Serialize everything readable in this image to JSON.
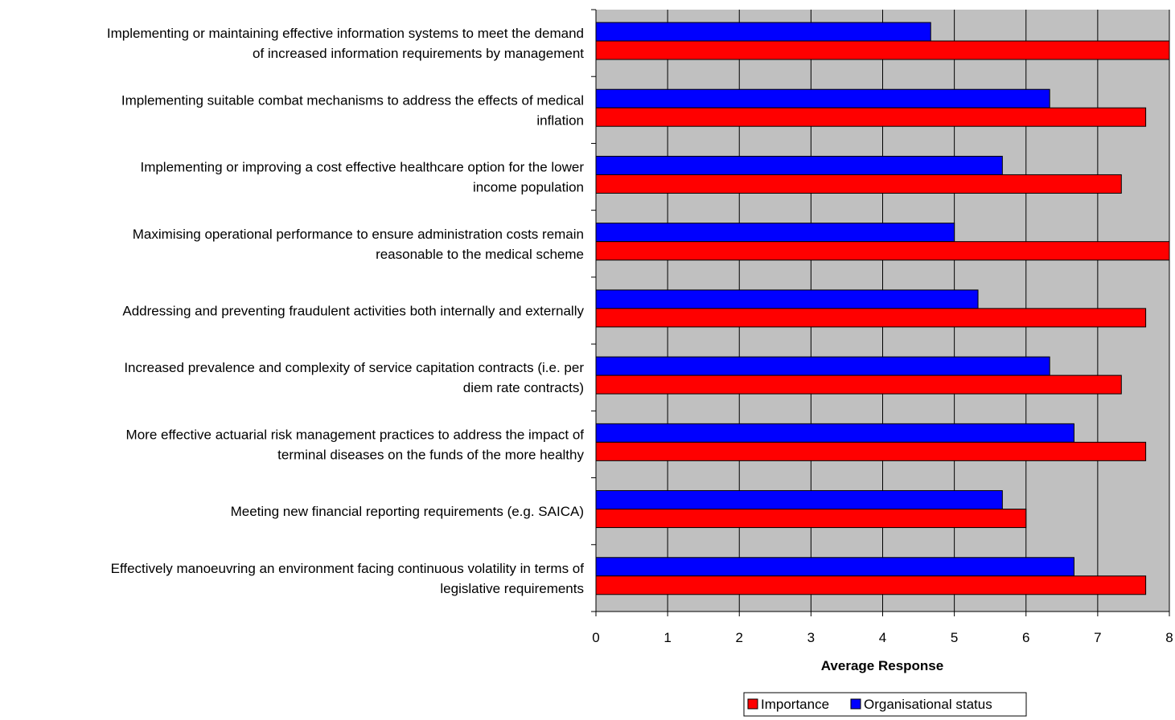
{
  "chart_data": {
    "type": "bar",
    "orientation": "horizontal",
    "categories": [
      [
        "Implementing or maintaining effective information systems to meet the demand",
        "of increased information requirements by management"
      ],
      [
        "Implementing suitable combat mechanisms to address the effects of medical",
        "inflation"
      ],
      [
        "Implementing or improving a cost effective healthcare option for the lower",
        "income population"
      ],
      [
        "Maximising operational performance to ensure administration costs remain",
        "reasonable to the medical scheme"
      ],
      [
        "Addressing and preventing fraudulent activities both internally and externally"
      ],
      [
        "Increased prevalence and complexity of service capitation contracts (i.e. per",
        "diem rate contracts)"
      ],
      [
        "More effective actuarial risk management practices to address the impact of",
        "terminal diseases on the funds of the more healthy"
      ],
      [
        "Meeting new financial reporting requirements (e.g.  SAICA)"
      ],
      [
        "Effectively manoeuvring an environment facing continuous volatility in terms of",
        "legislative requirements"
      ]
    ],
    "series": [
      {
        "name": "Organisational status",
        "color": "#0000FF",
        "values": [
          4.67,
          6.33,
          5.67,
          5.0,
          5.33,
          6.33,
          6.67,
          5.67,
          6.67
        ]
      },
      {
        "name": "Importance",
        "color": "#FF0000",
        "values": [
          8.0,
          7.67,
          7.33,
          8.0,
          7.67,
          7.33,
          7.67,
          6.0,
          7.67
        ]
      }
    ],
    "xlabel": "Average Response",
    "xlim": [
      0,
      8
    ],
    "xticks": [
      "0",
      "1",
      "2",
      "3",
      "4",
      "5",
      "6",
      "7",
      "8"
    ],
    "grid": true,
    "plot_background": "#C0C0C0",
    "legend": {
      "placement": "bottom",
      "order": [
        "Importance",
        "Organisational status"
      ]
    }
  }
}
